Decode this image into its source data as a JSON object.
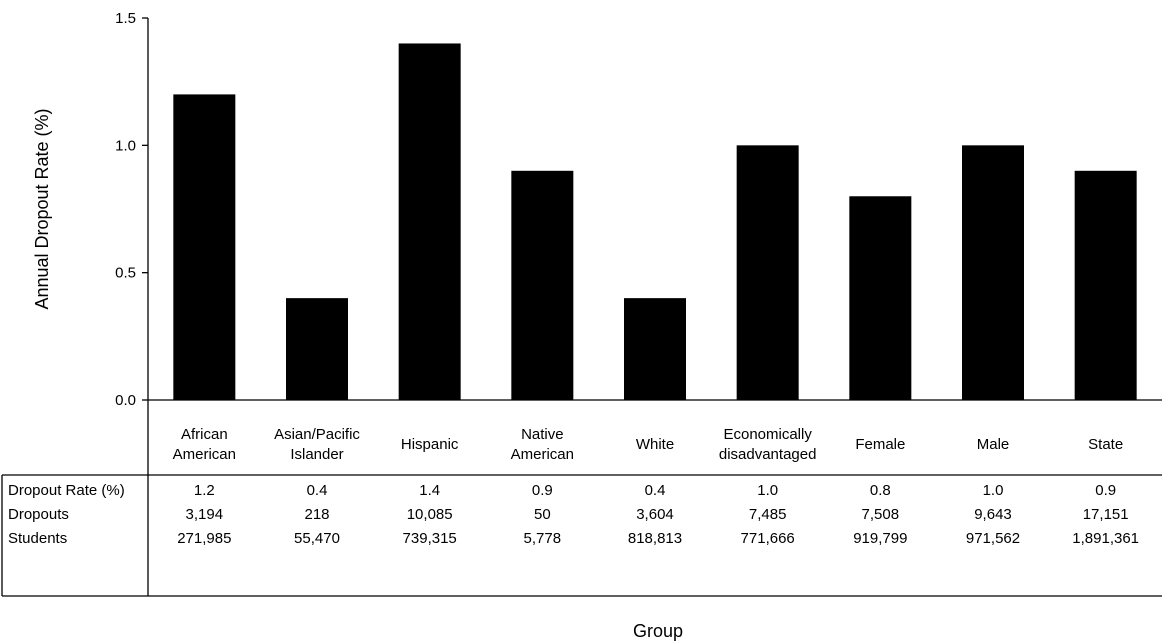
{
  "chart_data": {
    "type": "bar",
    "title": "",
    "xlabel": "Group",
    "ylabel": "Annual Dropout Rate (%)",
    "ylim": [
      0,
      1.5
    ],
    "yticks": [
      "0.0",
      "0.5",
      "1.0",
      "1.5"
    ],
    "ytick_values": [
      0,
      0.5,
      1.0,
      1.5
    ],
    "grid": false,
    "categories": [
      [
        "African",
        "American"
      ],
      [
        "Asian/Pacific",
        "Islander"
      ],
      [
        "Hispanic"
      ],
      [
        "Native",
        "American"
      ],
      [
        "White"
      ],
      [
        "Economically",
        "disadvantaged"
      ],
      [
        "Female"
      ],
      [
        "Male"
      ],
      [
        "State"
      ]
    ],
    "values": [
      1.2,
      0.4,
      1.4,
      0.9,
      0.4,
      1.0,
      0.8,
      1.0,
      0.9
    ],
    "bar_color": "#000000",
    "table": {
      "rows": [
        {
          "label": "Dropout Rate (%)",
          "cells": [
            "1.2",
            "0.4",
            "1.4",
            "0.9",
            "0.4",
            "1.0",
            "0.8",
            "1.0",
            "0.9"
          ]
        },
        {
          "label": "Dropouts",
          "cells": [
            "3,194",
            "218",
            "10,085",
            "50",
            "3,604",
            "7,485",
            "7,508",
            "9,643",
            "17,151"
          ]
        },
        {
          "label": "Students",
          "cells": [
            "271,985",
            "55,470",
            "739,315",
            "5,778",
            "818,813",
            "771,666",
            "919,799",
            "971,562",
            "1,891,361"
          ]
        }
      ]
    }
  }
}
